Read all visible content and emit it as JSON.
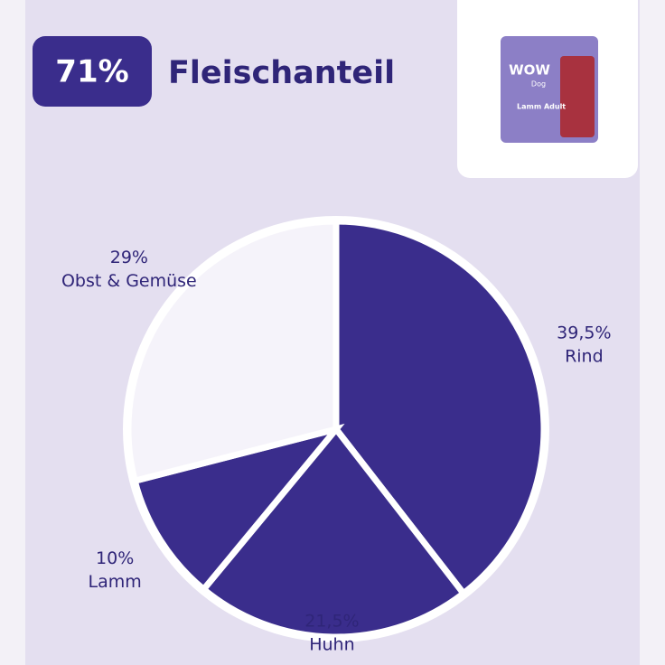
{
  "header": {
    "badge": "71%",
    "title": "Fleischanteil"
  },
  "product": {
    "brand": "WOW",
    "line": "Dog",
    "name": "Lamm Adult"
  },
  "chart_data": {
    "type": "pie",
    "categories": [
      "Rind",
      "Huhn",
      "Lamm",
      "Obst & Gemüse"
    ],
    "values": [
      39.5,
      21.5,
      10,
      29
    ],
    "value_labels": [
      "39,5%",
      "21,5%",
      "10%",
      "29%"
    ],
    "colors": [
      "#3a2d8c",
      "#3a2d8c",
      "#3a2d8c",
      "#f5f3fa"
    ]
  }
}
